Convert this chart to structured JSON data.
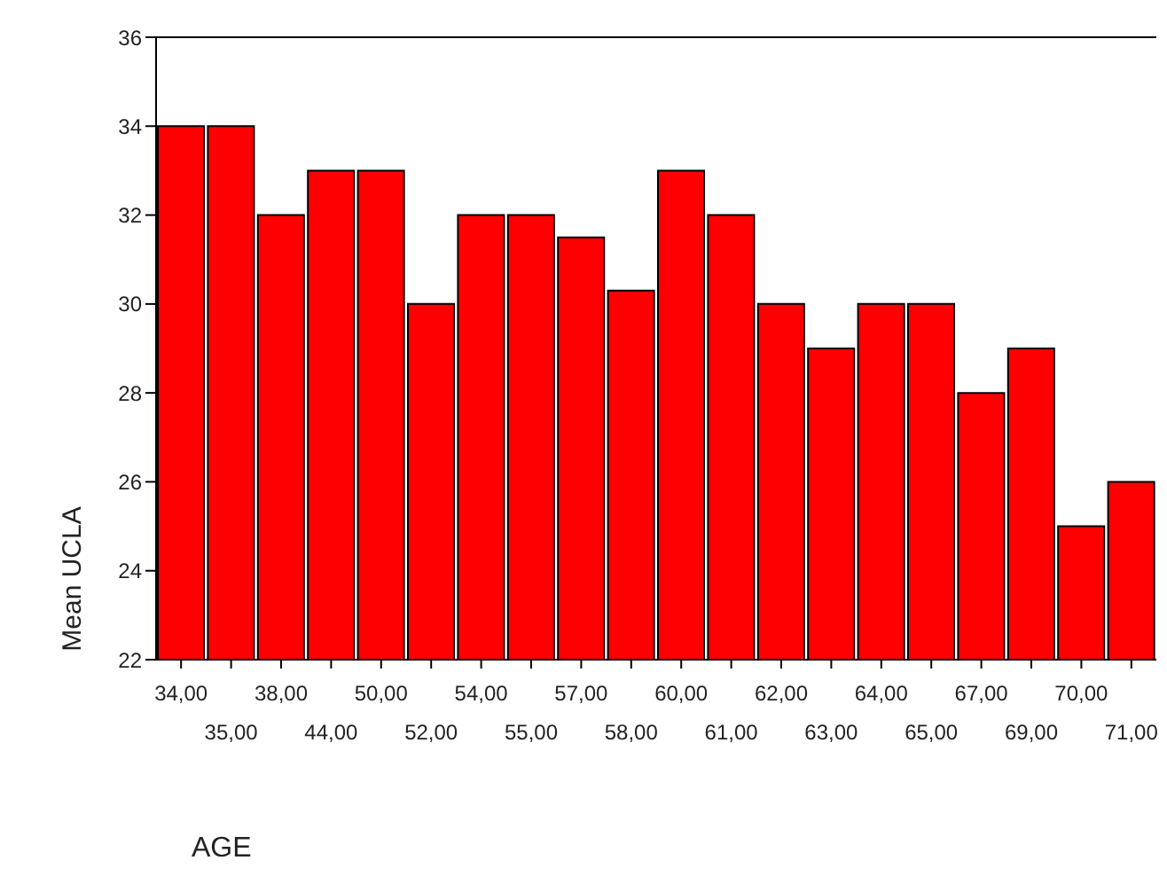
{
  "chart_data": {
    "type": "bar",
    "xlabel": "AGE",
    "ylabel": "Mean UCLA",
    "categories": [
      "34,00",
      "35,00",
      "38,00",
      "44,00",
      "50,00",
      "52,00",
      "54,00",
      "55,00",
      "57,00",
      "58,00",
      "60,00",
      "61,00",
      "62,00",
      "63,00",
      "64,00",
      "65,00",
      "67,00",
      "69,00",
      "70,00",
      "71,00"
    ],
    "values": [
      34,
      34,
      32,
      33,
      33,
      30,
      32,
      32,
      31.5,
      30.3,
      33,
      32,
      30,
      29,
      30,
      30,
      28,
      29,
      25,
      26
    ],
    "color": "#ff0000",
    "ylim": [
      22,
      36
    ],
    "yticks": [
      22,
      24,
      26,
      28,
      30,
      32,
      34,
      36
    ],
    "grid": false,
    "legend": false
  }
}
